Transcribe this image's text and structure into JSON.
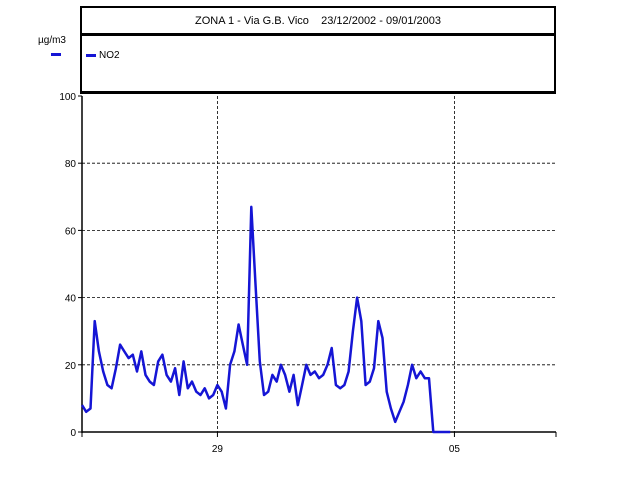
{
  "chart_data": {
    "type": "line",
    "title": "ZONA 1 - Via G.B. Vico    23/12/2002 - 09/01/2003",
    "ylabel": "µg/m3",
    "xlabel": "",
    "ylim": [
      0,
      100
    ],
    "yticks": [
      "0",
      "20",
      "40",
      "60",
      "80",
      "100"
    ],
    "xlim": [
      "2002-12-25",
      "2003-01-08"
    ],
    "xticks": [
      {
        "date": "2002-12-29",
        "label": "29"
      },
      {
        "date": "2003-01-05",
        "label": "05"
      }
    ],
    "grid": true,
    "legend_position": "top-left",
    "series": [
      {
        "name": "NO2",
        "color": "#1515d5",
        "x": [
          "2002-12-25T00:00",
          "2002-12-25T03:00",
          "2002-12-25T06:00",
          "2002-12-25T09:00",
          "2002-12-25T12:00",
          "2002-12-25T15:00",
          "2002-12-25T18:00",
          "2002-12-25T21:00",
          "2002-12-26T00:00",
          "2002-12-26T03:00",
          "2002-12-26T06:00",
          "2002-12-26T09:00",
          "2002-12-26T12:00",
          "2002-12-26T15:00",
          "2002-12-26T18:00",
          "2002-12-26T21:00",
          "2002-12-27T00:00",
          "2002-12-27T03:00",
          "2002-12-27T06:00",
          "2002-12-27T09:00",
          "2002-12-27T12:00",
          "2002-12-27T15:00",
          "2002-12-27T18:00",
          "2002-12-27T21:00",
          "2002-12-28T00:00",
          "2002-12-28T03:00",
          "2002-12-28T06:00",
          "2002-12-28T09:00",
          "2002-12-28T12:00",
          "2002-12-28T15:00",
          "2002-12-28T18:00",
          "2002-12-28T21:00",
          "2002-12-29T00:00",
          "2002-12-29T03:00",
          "2002-12-29T06:00",
          "2002-12-29T09:00",
          "2002-12-29T12:00",
          "2002-12-29T15:00",
          "2002-12-29T18:00",
          "2002-12-29T21:00",
          "2002-12-30T00:00",
          "2002-12-30T03:00",
          "2002-12-30T06:00",
          "2002-12-30T09:00",
          "2002-12-30T12:00",
          "2002-12-30T15:00",
          "2002-12-30T18:00",
          "2002-12-30T21:00",
          "2002-12-31T00:00",
          "2002-12-31T03:00",
          "2002-12-31T06:00",
          "2002-12-31T09:00",
          "2002-12-31T12:00",
          "2002-12-31T15:00",
          "2002-12-31T18:00",
          "2002-12-31T21:00",
          "2003-01-01T00:00",
          "2003-01-01T03:00",
          "2003-01-01T06:00",
          "2003-01-01T09:00",
          "2003-01-01T12:00",
          "2003-01-01T15:00",
          "2003-01-01T18:00",
          "2003-01-01T21:00",
          "2003-01-02T00:00",
          "2003-01-02T03:00",
          "2003-01-02T06:00",
          "2003-01-02T09:00",
          "2003-01-02T12:00",
          "2003-01-02T15:00",
          "2003-01-02T18:00",
          "2003-01-02T21:00",
          "2003-01-03T00:00",
          "2003-01-03T03:00",
          "2003-01-03T06:00",
          "2003-01-03T09:00",
          "2003-01-03T12:00",
          "2003-01-03T15:00",
          "2003-01-03T18:00",
          "2003-01-03T21:00",
          "2003-01-04T00:00",
          "2003-01-04T03:00",
          "2003-01-04T06:00",
          "2003-01-04T09:00",
          "2003-01-04T12:00",
          "2003-01-04T15:00",
          "2003-01-04T18:00",
          "2003-01-04T21:00",
          "2003-01-05T00:00",
          "2003-01-05T03:00",
          "2003-01-05T06:00",
          "2003-01-05T09:00",
          "2003-01-05T12:00",
          "2003-01-05T15:00",
          "2003-01-05T18:00",
          "2003-01-05T21:00",
          "2003-01-06T00:00",
          "2003-01-06T03:00",
          "2003-01-06T06:00",
          "2003-01-06T09:00",
          "2003-01-06T12:00",
          "2003-01-06T15:00",
          "2003-01-06T18:00",
          "2003-01-06T21:00"
        ],
        "values": [
          8,
          6,
          7,
          33,
          24,
          18,
          14,
          13,
          19,
          26,
          24,
          22,
          23,
          18,
          24,
          17,
          15,
          14,
          21,
          23,
          17,
          15,
          19,
          11,
          21,
          13,
          15,
          12,
          11,
          13,
          10,
          11,
          14,
          12,
          7,
          20,
          24,
          32,
          26,
          20,
          67,
          44,
          21,
          11,
          12,
          17,
          15,
          20,
          17,
          12,
          17,
          8,
          14,
          20,
          17,
          18,
          16,
          17,
          20,
          25,
          14,
          13,
          14,
          18,
          30,
          40,
          33,
          14,
          15,
          19,
          33,
          28,
          12,
          7,
          3,
          6,
          9,
          14,
          20,
          16,
          18,
          16,
          16,
          0,
          0,
          0,
          0,
          0,
          0,
          0,
          0,
          0,
          0,
          0,
          0,
          0,
          0,
          0,
          0,
          0,
          0,
          0,
          0,
          0
        ]
      }
    ]
  }
}
